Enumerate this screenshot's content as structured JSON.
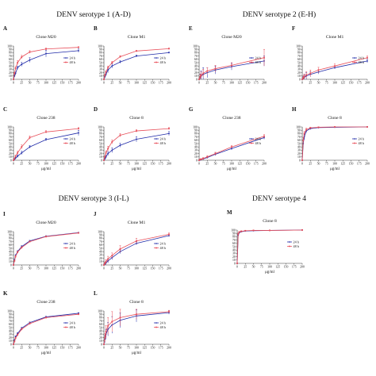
{
  "figure": {
    "sections": [
      {
        "id": "s1",
        "title": "DENV serotype 1 (A-D)"
      },
      {
        "id": "s2",
        "title": "DENV serotype 2 (E-H)"
      },
      {
        "id": "s3",
        "title": "DENV serotype 3 (I-L)"
      },
      {
        "id": "s4",
        "title": "DENV serotype 4"
      }
    ],
    "colors": {
      "series_24h": "#1f2aa8",
      "series_48h": "#e8505b",
      "axis": "#333333"
    }
  },
  "chart_data": [
    {
      "type": "line",
      "panel": "A",
      "title": "Clone M20",
      "xlabel": "",
      "ylabel": "",
      "xlim": [
        0,
        200
      ],
      "ylim": [
        0,
        100
      ],
      "grid": false,
      "legend": "right",
      "xticks": [
        0,
        25,
        50,
        75,
        100,
        125,
        150,
        175,
        200
      ],
      "yticks": [
        0,
        10,
        20,
        30,
        40,
        50,
        60,
        70,
        80,
        90,
        100
      ],
      "x": [
        0,
        3.125,
        6.25,
        12.5,
        25,
        50,
        100,
        200
      ],
      "series": [
        {
          "name": "24 h",
          "values": [
            0,
            10,
            18,
            35,
            45,
            58,
            77,
            86
          ],
          "error": [
            0,
            3,
            4,
            5,
            6,
            7,
            10,
            5
          ]
        },
        {
          "name": "48 h",
          "values": [
            0,
            18,
            33,
            50,
            67,
            82,
            91,
            96
          ],
          "error": [
            0,
            3,
            5,
            6,
            5,
            4,
            3,
            2
          ]
        }
      ]
    },
    {
      "type": "line",
      "panel": "B",
      "title": "Clone M1",
      "xlabel": "",
      "ylabel": "",
      "xlim": [
        0,
        200
      ],
      "ylim": [
        0,
        100
      ],
      "grid": false,
      "legend": "right",
      "xticks": [
        0,
        25,
        50,
        75,
        100,
        125,
        150,
        175,
        200
      ],
      "yticks": [
        0,
        10,
        20,
        30,
        40,
        50,
        60,
        70,
        80,
        90,
        100
      ],
      "x": [
        0,
        3.125,
        6.25,
        12.5,
        25,
        50,
        100,
        200
      ],
      "series": [
        {
          "name": "24 h",
          "values": [
            0,
            8,
            15,
            28,
            40,
            52,
            70,
            80
          ],
          "error": [
            0,
            4,
            5,
            8,
            6,
            4,
            3,
            2
          ]
        },
        {
          "name": "48 h",
          "values": [
            0,
            12,
            22,
            35,
            50,
            68,
            85,
            92
          ],
          "error": [
            0,
            3,
            4,
            5,
            4,
            3,
            2,
            2
          ]
        }
      ]
    },
    {
      "type": "line",
      "panel": "C",
      "title": "Clone 238",
      "xlabel": "μg/ml",
      "ylabel": "",
      "xlim": [
        0,
        200
      ],
      "ylim": [
        0,
        100
      ],
      "grid": false,
      "legend": "right",
      "xticks": [
        0,
        25,
        50,
        75,
        100,
        125,
        150,
        175,
        200
      ],
      "yticks": [
        0,
        10,
        20,
        30,
        40,
        50,
        60,
        70,
        80,
        90,
        100
      ],
      "x": [
        0,
        3.125,
        6.25,
        12.5,
        25,
        50,
        100,
        200
      ],
      "series": [
        {
          "name": "24 h",
          "values": [
            0,
            3,
            6,
            12,
            22,
            40,
            62,
            82
          ],
          "error": [
            0,
            2,
            3,
            4,
            5,
            4,
            4,
            8
          ]
        },
        {
          "name": "48 h",
          "values": [
            0,
            5,
            12,
            22,
            40,
            68,
            85,
            95
          ],
          "error": [
            0,
            2,
            3,
            5,
            6,
            5,
            4,
            3
          ]
        }
      ]
    },
    {
      "type": "line",
      "panel": "D",
      "title": "Clone 8",
      "xlabel": "μg/ml",
      "ylabel": "",
      "xlim": [
        0,
        200
      ],
      "ylim": [
        0,
        100
      ],
      "grid": false,
      "legend": "right",
      "xticks": [
        0,
        25,
        50,
        75,
        100,
        125,
        150,
        175,
        200
      ],
      "yticks": [
        0,
        10,
        20,
        30,
        40,
        50,
        60,
        70,
        80,
        90,
        100
      ],
      "x": [
        0,
        3.125,
        6.25,
        12.5,
        25,
        50,
        100,
        200
      ],
      "series": [
        {
          "name": "24 h",
          "values": [
            0,
            5,
            10,
            20,
            30,
            45,
            63,
            80
          ],
          "error": [
            0,
            4,
            5,
            6,
            7,
            6,
            8,
            6
          ]
        },
        {
          "name": "48 h",
          "values": [
            0,
            10,
            22,
            35,
            55,
            75,
            88,
            95
          ],
          "error": [
            0,
            4,
            6,
            7,
            6,
            5,
            4,
            3
          ]
        }
      ]
    },
    {
      "type": "line",
      "panel": "E",
      "title": "Clone M20",
      "xlabel": "",
      "ylabel": "",
      "xlim": [
        0,
        200
      ],
      "ylim": [
        0,
        100
      ],
      "grid": false,
      "legend": "right",
      "xticks": [
        0,
        25,
        50,
        75,
        100,
        125,
        150,
        175,
        200
      ],
      "yticks": [
        0,
        10,
        20,
        30,
        40,
        50,
        60,
        70,
        80,
        90,
        100
      ],
      "x": [
        0,
        3.125,
        6.25,
        12.5,
        25,
        50,
        100,
        200
      ],
      "series": [
        {
          "name": "24 h",
          "values": [
            0,
            5,
            10,
            15,
            20,
            28,
            38,
            55
          ],
          "error": [
            0,
            10,
            15,
            20,
            15,
            12,
            10,
            15
          ]
        },
        {
          "name": "48 h",
          "values": [
            0,
            8,
            12,
            18,
            25,
            32,
            42,
            65
          ],
          "error": [
            0,
            8,
            10,
            12,
            10,
            10,
            8,
            25
          ]
        }
      ]
    },
    {
      "type": "line",
      "panel": "F",
      "title": "Clone M1",
      "xlabel": "",
      "ylabel": "",
      "xlim": [
        0,
        200
      ],
      "ylim": [
        0,
        100
      ],
      "grid": false,
      "legend": "right",
      "xticks": [
        0,
        25,
        50,
        75,
        100,
        125,
        150,
        175,
        200
      ],
      "yticks": [
        0,
        10,
        20,
        30,
        40,
        50,
        60,
        70,
        80,
        90,
        100
      ],
      "x": [
        0,
        3.125,
        6.25,
        12.5,
        25,
        50,
        100,
        200
      ],
      "series": [
        {
          "name": "24 h",
          "values": [
            0,
            3,
            6,
            10,
            15,
            22,
            35,
            55
          ],
          "error": [
            0,
            5,
            8,
            10,
            8,
            6,
            4,
            5
          ]
        },
        {
          "name": "48 h",
          "values": [
            0,
            5,
            8,
            13,
            18,
            28,
            40,
            65
          ],
          "error": [
            0,
            6,
            8,
            10,
            10,
            8,
            6,
            5
          ]
        }
      ]
    },
    {
      "type": "line",
      "panel": "G",
      "title": "Clone 238",
      "xlabel": "μg/ml",
      "ylabel": "",
      "xlim": [
        0,
        200
      ],
      "ylim": [
        0,
        100
      ],
      "grid": false,
      "legend": "right",
      "xticks": [
        0,
        25,
        50,
        75,
        100,
        125,
        150,
        175,
        200
      ],
      "yticks": [
        0,
        10,
        20,
        30,
        40,
        50,
        60,
        70,
        80,
        90,
        100
      ],
      "x": [
        0,
        3.125,
        6.25,
        12.5,
        25,
        50,
        100,
        200
      ],
      "series": [
        {
          "name": "24 h",
          "values": [
            0,
            1,
            2,
            4,
            8,
            18,
            35,
            68
          ],
          "error": [
            0,
            2,
            2,
            3,
            3,
            4,
            4,
            5
          ]
        },
        {
          "name": "48 h",
          "values": [
            0,
            2,
            3,
            5,
            10,
            20,
            40,
            72
          ],
          "error": [
            0,
            2,
            2,
            3,
            4,
            4,
            4,
            5
          ]
        }
      ]
    },
    {
      "type": "line",
      "panel": "H",
      "title": "Clone 8",
      "xlabel": "μg/ml",
      "ylabel": "",
      "xlim": [
        0,
        200
      ],
      "ylim": [
        0,
        100
      ],
      "grid": false,
      "legend": "right",
      "xticks": [
        0,
        25,
        50,
        75,
        100,
        125,
        150,
        175,
        200
      ],
      "yticks": [
        0,
        10,
        20,
        30,
        40,
        50,
        60,
        70,
        80,
        90,
        100
      ],
      "x": [
        0,
        3.125,
        6.25,
        12.5,
        25,
        50,
        100,
        200
      ],
      "series": [
        {
          "name": "24 h",
          "values": [
            0,
            50,
            70,
            88,
            95,
            98,
            99,
            100
          ],
          "error": [
            0,
            10,
            8,
            5,
            3,
            2,
            1,
            1
          ]
        },
        {
          "name": "48 h",
          "values": [
            0,
            60,
            80,
            92,
            97,
            99,
            100,
            100
          ],
          "error": [
            0,
            8,
            6,
            4,
            2,
            1,
            1,
            1
          ]
        }
      ]
    },
    {
      "type": "line",
      "panel": "I",
      "title": "Clone M20",
      "xlabel": "",
      "ylabel": "",
      "xlim": [
        0,
        200
      ],
      "ylim": [
        0,
        100
      ],
      "grid": false,
      "legend": "right",
      "xticks": [
        0,
        25,
        50,
        75,
        100,
        125,
        150,
        175,
        200
      ],
      "yticks": [
        0,
        10,
        20,
        30,
        40,
        50,
        60,
        70,
        80,
        90,
        100
      ],
      "x": [
        0,
        3.125,
        6.25,
        12.5,
        25,
        50,
        100,
        200
      ],
      "series": [
        {
          "name": "24 h",
          "values": [
            0,
            15,
            28,
            40,
            55,
            72,
            86,
            97
          ],
          "error": [
            0,
            2,
            3,
            3,
            3,
            2,
            2,
            1
          ]
        },
        {
          "name": "48 h",
          "values": [
            0,
            12,
            25,
            38,
            52,
            70,
            85,
            96
          ],
          "error": [
            0,
            2,
            3,
            3,
            3,
            2,
            2,
            1
          ]
        }
      ]
    },
    {
      "type": "line",
      "panel": "J",
      "title": "Clone M1",
      "xlabel": "",
      "ylabel": "",
      "xlim": [
        0,
        200
      ],
      "ylim": [
        0,
        100
      ],
      "grid": false,
      "legend": "right",
      "xticks": [
        0,
        25,
        50,
        75,
        100,
        125,
        150,
        175,
        200
      ],
      "yticks": [
        0,
        10,
        20,
        30,
        40,
        50,
        60,
        70,
        80,
        90,
        100
      ],
      "x": [
        0,
        3.125,
        6.25,
        12.5,
        25,
        50,
        100,
        200
      ],
      "series": [
        {
          "name": "24 h",
          "values": [
            0,
            3,
            6,
            12,
            22,
            40,
            65,
            88
          ],
          "error": [
            0,
            3,
            5,
            6,
            6,
            6,
            5,
            3
          ]
        },
        {
          "name": "48 h",
          "values": [
            0,
            5,
            10,
            18,
            28,
            48,
            72,
            92
          ],
          "error": [
            0,
            4,
            6,
            8,
            8,
            10,
            8,
            4
          ]
        }
      ]
    },
    {
      "type": "line",
      "panel": "K",
      "title": "Clone 238",
      "xlabel": "μg/ml",
      "ylabel": "",
      "xlim": [
        0,
        200
      ],
      "ylim": [
        0,
        100
      ],
      "grid": false,
      "legend": "right",
      "xticks": [
        0,
        25,
        50,
        75,
        100,
        125,
        150,
        175,
        200
      ],
      "yticks": [
        0,
        10,
        20,
        30,
        40,
        50,
        60,
        70,
        80,
        90,
        100
      ],
      "x": [
        0,
        3.125,
        6.25,
        12.5,
        25,
        50,
        100,
        200
      ],
      "series": [
        {
          "name": "24 h",
          "values": [
            0,
            12,
            22,
            32,
            48,
            65,
            82,
            93
          ],
          "error": [
            0,
            2,
            3,
            3,
            3,
            2,
            2,
            2
          ]
        },
        {
          "name": "48 h",
          "values": [
            0,
            8,
            18,
            28,
            45,
            62,
            80,
            90
          ],
          "error": [
            0,
            2,
            3,
            3,
            3,
            3,
            2,
            2
          ]
        }
      ]
    },
    {
      "type": "line",
      "panel": "L",
      "title": "Clone 8",
      "xlabel": "μg/ml",
      "ylabel": "",
      "xlim": [
        0,
        200
      ],
      "ylim": [
        0,
        100
      ],
      "grid": false,
      "legend": "right",
      "xticks": [
        0,
        25,
        50,
        75,
        100,
        125,
        150,
        175,
        200
      ],
      "yticks": [
        0,
        10,
        20,
        30,
        40,
        50,
        60,
        70,
        80,
        90,
        100
      ],
      "x": [
        0,
        3.125,
        6.25,
        12.5,
        25,
        50,
        100,
        200
      ],
      "series": [
        {
          "name": "24 h",
          "values": [
            0,
            15,
            30,
            45,
            58,
            72,
            85,
            95
          ],
          "error": [
            0,
            10,
            15,
            20,
            25,
            22,
            18,
            5
          ]
        },
        {
          "name": "48 h",
          "values": [
            0,
            20,
            38,
            55,
            68,
            80,
            90,
            98
          ],
          "error": [
            0,
            12,
            18,
            25,
            30,
            25,
            15,
            4
          ]
        }
      ]
    },
    {
      "type": "line",
      "panel": "M",
      "title": "Clone 8",
      "xlabel": "μg/ml",
      "ylabel": "",
      "xlim": [
        0,
        200
      ],
      "ylim": [
        0,
        100
      ],
      "grid": false,
      "legend": "right",
      "xticks": [
        0,
        25,
        50,
        75,
        100,
        125,
        150,
        175,
        200
      ],
      "yticks": [
        0,
        10,
        20,
        30,
        40,
        50,
        60,
        70,
        80,
        90,
        100
      ],
      "x": [
        0,
        3.125,
        6.25,
        12.5,
        25,
        50,
        100,
        200
      ],
      "series": [
        {
          "name": "24 h",
          "values": [
            0,
            85,
            92,
            95,
            97,
            98,
            99,
            100
          ],
          "error": [
            0,
            3,
            2,
            2,
            1,
            1,
            1,
            1
          ]
        },
        {
          "name": "48 h",
          "values": [
            0,
            88,
            94,
            96,
            98,
            99,
            99,
            100
          ],
          "error": [
            0,
            3,
            2,
            2,
            1,
            1,
            1,
            1
          ]
        }
      ]
    }
  ]
}
